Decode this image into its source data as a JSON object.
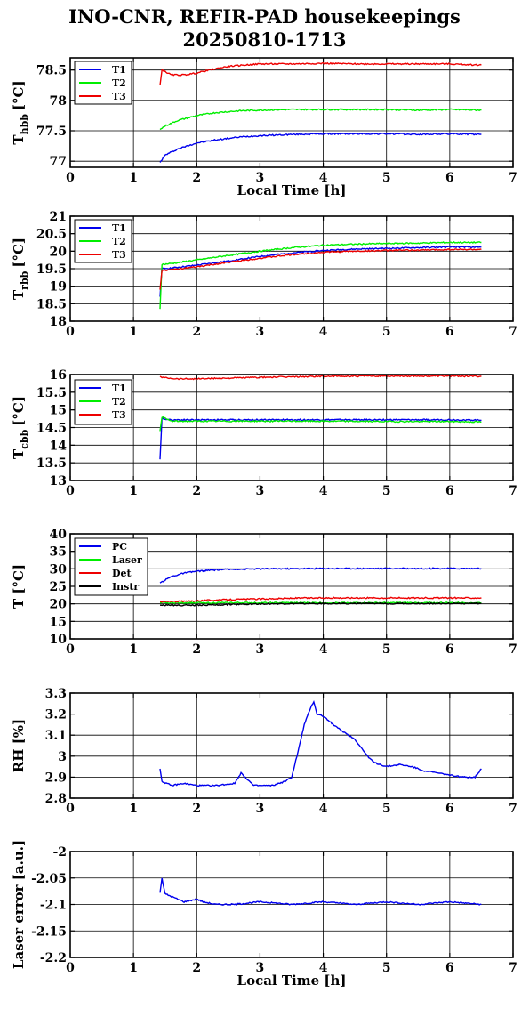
{
  "figure": {
    "title_line1": "INO-CNR, REFIR-PAD housekeepings",
    "title_line2": "20250810-1713"
  },
  "chart_data": [
    {
      "type": "line",
      "ylabel_main": "T",
      "ylabel_sub": "hbb",
      "ylabel_unit": "[°C]",
      "xlabel": "Local Time [h]",
      "xlim": [
        0,
        7
      ],
      "ylim": [
        76.9,
        78.7
      ],
      "yticks": [
        77,
        77.5,
        78,
        78.5
      ],
      "xticks": [
        0,
        1,
        2,
        3,
        4,
        5,
        6,
        7
      ],
      "grid": true,
      "legend": "top-left",
      "series": [
        {
          "name": "T1",
          "color": "#0000ee",
          "x": [
            1.42,
            1.5,
            1.7,
            2.0,
            2.3,
            2.7,
            3.0,
            3.5,
            4.0,
            4.5,
            5.0,
            5.5,
            6.0,
            6.5
          ],
          "y": [
            76.98,
            77.1,
            77.2,
            77.3,
            77.35,
            77.4,
            77.42,
            77.44,
            77.45,
            77.45,
            77.45,
            77.44,
            77.45,
            77.44
          ]
        },
        {
          "name": "T2",
          "color": "#00ee00",
          "x": [
            1.42,
            1.5,
            1.7,
            2.0,
            2.3,
            2.7,
            3.0,
            3.5,
            4.0,
            4.5,
            5.0,
            5.5,
            6.0,
            6.5
          ],
          "y": [
            77.52,
            77.58,
            77.67,
            77.75,
            77.8,
            77.83,
            77.84,
            77.85,
            77.85,
            77.85,
            77.85,
            77.84,
            77.85,
            77.84
          ]
        },
        {
          "name": "T3",
          "color": "#ee0000",
          "x": [
            1.42,
            1.45,
            1.6,
            1.8,
            2.0,
            2.2,
            2.5,
            3.0,
            3.5,
            4.0,
            4.5,
            5.0,
            5.5,
            6.0,
            6.5
          ],
          "y": [
            78.25,
            78.5,
            78.42,
            78.42,
            78.45,
            78.5,
            78.56,
            78.6,
            78.6,
            78.61,
            78.6,
            78.6,
            78.6,
            78.6,
            78.58
          ]
        }
      ]
    },
    {
      "type": "line",
      "ylabel_main": "T",
      "ylabel_sub": "rbb",
      "ylabel_unit": "[°C]",
      "xlabel": "",
      "xlim": [
        0,
        7
      ],
      "ylim": [
        18,
        21
      ],
      "yticks": [
        18,
        18.5,
        19,
        19.5,
        20,
        20.5,
        21
      ],
      "xticks": [
        0,
        1,
        2,
        3,
        4,
        5,
        6,
        7
      ],
      "grid": true,
      "legend": "top-left",
      "series": [
        {
          "name": "T1",
          "color": "#0000ee",
          "x": [
            1.42,
            1.45,
            1.6,
            2.0,
            2.5,
            3.0,
            3.5,
            4.0,
            4.5,
            5.0,
            5.5,
            6.0,
            6.5
          ],
          "y": [
            18.7,
            19.5,
            19.52,
            19.6,
            19.72,
            19.85,
            19.95,
            20.02,
            20.06,
            20.08,
            20.1,
            20.12,
            20.12
          ]
        },
        {
          "name": "T2",
          "color": "#00ee00",
          "x": [
            1.42,
            1.45,
            1.6,
            2.0,
            2.5,
            3.0,
            3.5,
            4.0,
            4.5,
            5.0,
            5.5,
            6.0,
            6.5
          ],
          "y": [
            18.35,
            19.62,
            19.65,
            19.75,
            19.88,
            20.0,
            20.1,
            20.17,
            20.2,
            20.22,
            20.23,
            20.25,
            20.25
          ]
        },
        {
          "name": "T3",
          "color": "#ee0000",
          "x": [
            1.42,
            1.45,
            1.6,
            2.0,
            2.5,
            3.0,
            3.5,
            4.0,
            4.5,
            5.0,
            5.5,
            6.0,
            6.5
          ],
          "y": [
            18.9,
            19.45,
            19.47,
            19.55,
            19.68,
            19.8,
            19.9,
            19.97,
            20.0,
            20.02,
            20.03,
            20.05,
            20.05
          ]
        }
      ]
    },
    {
      "type": "line",
      "ylabel_main": "T",
      "ylabel_sub": "cbb",
      "ylabel_unit": "[°C]",
      "xlabel": "",
      "xlim": [
        0,
        7
      ],
      "ylim": [
        13,
        16
      ],
      "yticks": [
        13,
        13.5,
        14,
        14.5,
        15,
        15.5,
        16
      ],
      "xticks": [
        0,
        1,
        2,
        3,
        4,
        5,
        6,
        7
      ],
      "grid": true,
      "legend": "top-left",
      "series": [
        {
          "name": "T1",
          "color": "#0000ee",
          "x": [
            1.42,
            1.45,
            1.6,
            2.0,
            3.0,
            4.0,
            5.0,
            6.0,
            6.5
          ],
          "y": [
            13.6,
            14.75,
            14.72,
            14.72,
            14.72,
            14.72,
            14.72,
            14.72,
            14.71
          ]
        },
        {
          "name": "T2",
          "color": "#00ee00",
          "x": [
            1.42,
            1.45,
            1.6,
            2.0,
            3.0,
            4.0,
            5.0,
            6.0,
            6.5
          ],
          "y": [
            14.4,
            14.8,
            14.68,
            14.68,
            14.68,
            14.68,
            14.67,
            14.67,
            14.66
          ]
        },
        {
          "name": "T3",
          "color": "#ee0000",
          "x": [
            1.42,
            1.45,
            1.7,
            2.0,
            2.5,
            3.0,
            4.0,
            5.0,
            6.0,
            6.5
          ],
          "y": [
            15.95,
            15.92,
            15.88,
            15.88,
            15.9,
            15.92,
            15.95,
            15.96,
            15.96,
            15.95
          ]
        }
      ]
    },
    {
      "type": "line",
      "ylabel_main": "T [°C]",
      "ylabel_sub": "",
      "ylabel_unit": "",
      "xlabel": "",
      "xlim": [
        0,
        7
      ],
      "ylim": [
        10,
        40
      ],
      "yticks": [
        10,
        15,
        20,
        25,
        30,
        35,
        40
      ],
      "xticks": [
        0,
        1,
        2,
        3,
        4,
        5,
        6,
        7
      ],
      "grid": true,
      "legend": "top-left",
      "series": [
        {
          "name": "PC",
          "color": "#0000ee",
          "x": [
            1.42,
            1.6,
            1.8,
            2.0,
            2.3,
            2.6,
            3.0,
            4.0,
            5.0,
            6.0,
            6.5
          ],
          "y": [
            26,
            27.8,
            28.8,
            29.3,
            29.7,
            29.9,
            30.0,
            30.1,
            30.1,
            30.1,
            30.1
          ]
        },
        {
          "name": "Laser",
          "color": "#00ee00",
          "x": [
            1.42,
            2.0,
            3.0,
            4.0,
            5.0,
            6.0,
            6.5
          ],
          "y": [
            20.3,
            20.3,
            20.3,
            20.3,
            20.3,
            20.3,
            20.3
          ]
        },
        {
          "name": "Det",
          "color": "#ee0000",
          "x": [
            1.42,
            1.8,
            2.0,
            2.5,
            3.0,
            3.5,
            4.0,
            5.0,
            6.0,
            6.5
          ],
          "y": [
            20.6,
            20.7,
            20.9,
            21.2,
            21.4,
            21.6,
            21.7,
            21.7,
            21.7,
            21.7
          ]
        },
        {
          "name": "Instr",
          "color": "#000000",
          "x": [
            1.42,
            2.0,
            2.5,
            3.0,
            4.0,
            5.0,
            6.0,
            6.5
          ],
          "y": [
            19.6,
            19.6,
            19.8,
            20.0,
            20.1,
            20.1,
            20.1,
            20.1
          ]
        }
      ]
    },
    {
      "type": "line",
      "ylabel_main": "RH [%]",
      "ylabel_sub": "",
      "ylabel_unit": "",
      "xlabel": "",
      "xlim": [
        0,
        7
      ],
      "ylim": [
        2.8,
        3.3
      ],
      "yticks": [
        2.8,
        2.9,
        3,
        3.1,
        3.2,
        3.3
      ],
      "xticks": [
        0,
        1,
        2,
        3,
        4,
        5,
        6,
        7
      ],
      "grid": true,
      "legend": "none",
      "series": [
        {
          "color": "#0000ee",
          "x": [
            1.42,
            1.45,
            1.6,
            1.8,
            2.0,
            2.3,
            2.6,
            2.7,
            2.9,
            3.2,
            3.4,
            3.5,
            3.6,
            3.7,
            3.8,
            3.85,
            3.9,
            4.0,
            4.2,
            4.4,
            4.5,
            4.7,
            4.8,
            5.0,
            5.2,
            5.4,
            5.6,
            5.8,
            6.0,
            6.2,
            6.4,
            6.5
          ],
          "y": [
            2.94,
            2.88,
            2.86,
            2.87,
            2.86,
            2.86,
            2.87,
            2.92,
            2.86,
            2.86,
            2.88,
            2.9,
            3.02,
            3.15,
            3.23,
            3.26,
            3.2,
            3.19,
            3.14,
            3.1,
            3.08,
            3.0,
            2.97,
            2.95,
            2.96,
            2.95,
            2.93,
            2.92,
            2.91,
            2.9,
            2.9,
            2.94
          ]
        }
      ]
    },
    {
      "type": "line",
      "ylabel_main": "Laser error [a.u.]",
      "ylabel_sub": "",
      "ylabel_unit": "",
      "xlabel": "Local Time [h]",
      "xlim": [
        0,
        7
      ],
      "ylim": [
        -2.2,
        -2
      ],
      "yticks": [
        -2.2,
        -2.15,
        -2.1,
        -2.05,
        -2
      ],
      "xticks": [
        0,
        1,
        2,
        3,
        4,
        5,
        6,
        7
      ],
      "grid": true,
      "legend": "none",
      "series": [
        {
          "color": "#0000ee",
          "x": [
            1.42,
            1.45,
            1.5,
            1.6,
            1.8,
            2.0,
            2.1,
            2.3,
            2.6,
            3.0,
            3.5,
            4.0,
            4.5,
            5.0,
            5.5,
            6.0,
            6.5
          ],
          "y": [
            -2.078,
            -2.05,
            -2.08,
            -2.085,
            -2.095,
            -2.09,
            -2.095,
            -2.1,
            -2.1,
            -2.095,
            -2.1,
            -2.095,
            -2.1,
            -2.095,
            -2.1,
            -2.095,
            -2.1
          ]
        }
      ]
    }
  ]
}
